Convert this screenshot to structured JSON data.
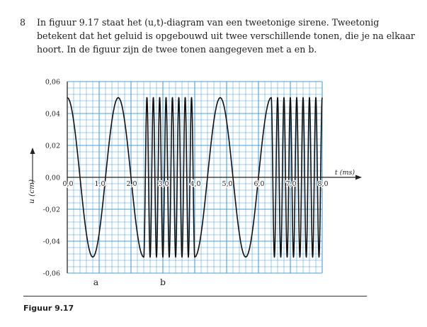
{
  "exercise": {
    "number": "8",
    "text": "In figuur 9.17 staat het (u,t)-diagram van een tweetonige sirene. Tweetonig betekent dat het geluid is opgebouwd uit twee verschillende tonen, die je na elkaar hoort. In de figuur zijn de twee tonen aangegeven met a en b."
  },
  "chart_data": {
    "type": "line",
    "title": "",
    "xlabel": "t (ms)",
    "ylabel": "u (cm)",
    "xlim": [
      0,
      8.0
    ],
    "ylim": [
      -0.06,
      0.06
    ],
    "x_ticks": [
      "0,0",
      "1,0",
      "2,0",
      "3,0",
      "4,0",
      "5,0",
      "6,0",
      "7,0",
      "8,0"
    ],
    "y_ticks": [
      "0,06",
      "0,04",
      "0,02",
      "0,00",
      "-0,02",
      "-0,04",
      "-0,06"
    ],
    "grid": true,
    "amplitude": 0.05,
    "segments": [
      {
        "tone": "a",
        "t_start": 0.0,
        "t_end": 2.4,
        "period": 1.6,
        "start_phase": "max"
      },
      {
        "tone": "b",
        "t_start": 2.4,
        "t_end": 4.0,
        "period": 0.2,
        "start_phase": "min"
      },
      {
        "tone": "a",
        "t_start": 4.0,
        "t_end": 6.4,
        "period": 1.6,
        "start_phase": "min"
      },
      {
        "tone": "b",
        "t_start": 6.4,
        "t_end": 8.0,
        "period": 0.2,
        "start_phase": "max"
      }
    ],
    "labels": [
      {
        "text": "a",
        "x": 0.9
      },
      {
        "text": "b",
        "x": 3.0
      }
    ]
  },
  "caption": "Figuur 9.17"
}
